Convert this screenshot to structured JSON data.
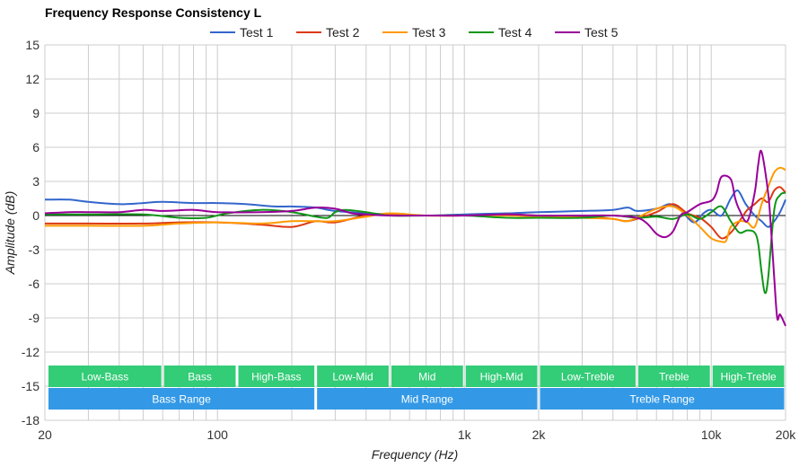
{
  "chart_data": {
    "type": "line",
    "title": "Frequency Response Consistency L",
    "xlabel": "Frequency (Hz)",
    "ylabel": "Amplitude (dB)",
    "xscale": "log",
    "xlim": [
      20,
      20000
    ],
    "ylim": [
      -18,
      15
    ],
    "grid": true,
    "legend_position": "top",
    "x_ticks": [
      {
        "value": 20,
        "label": "20"
      },
      {
        "value": 100,
        "label": "100"
      },
      {
        "value": 1000,
        "label": "1k"
      },
      {
        "value": 2000,
        "label": "2k"
      },
      {
        "value": 10000,
        "label": "10k"
      },
      {
        "value": 20000,
        "label": "20k"
      }
    ],
    "y_ticks": [
      15,
      12,
      9,
      6,
      3,
      0,
      -3,
      -6,
      -9,
      -12,
      -15,
      -18
    ],
    "series": [
      {
        "name": "Test 1",
        "color": "#3366cc",
        "x": [
          20,
          25,
          30,
          40,
          50,
          60,
          80,
          100,
          130,
          170,
          200,
          250,
          300,
          400,
          500,
          700,
          1000,
          1500,
          2000,
          3000,
          4000,
          4600,
          5000,
          6000,
          6800,
          7500,
          8500,
          9300,
          10000,
          11000,
          12000,
          12800,
          13800,
          15000,
          16000,
          17000,
          18000,
          19000,
          20000
        ],
        "y": [
          1.4,
          1.4,
          1.2,
          1.0,
          1.1,
          1.2,
          1.1,
          1.1,
          1.0,
          0.8,
          0.8,
          0.7,
          0.4,
          0.2,
          0.1,
          0.0,
          0.1,
          0.2,
          0.3,
          0.4,
          0.5,
          0.7,
          0.4,
          0.6,
          1.0,
          0.5,
          -0.6,
          0.2,
          0.5,
          0.0,
          1.5,
          2.2,
          1.0,
          0.0,
          -0.5,
          -1.0,
          -0.5,
          0.3,
          1.4
        ]
      },
      {
        "name": "Test 2",
        "color": "#dc3912",
        "x": [
          20,
          30,
          50,
          70,
          100,
          150,
          200,
          250,
          300,
          400,
          500,
          700,
          1000,
          1500,
          2000,
          3000,
          4000,
          4500,
          5000,
          6000,
          7000,
          8000,
          9000,
          10000,
          11000,
          12000,
          13000,
          14000,
          15000,
          16000,
          17000,
          18000,
          19000,
          20000
        ],
        "y": [
          -0.7,
          -0.7,
          -0.7,
          -0.6,
          -0.6,
          -0.8,
          -1.0,
          -0.5,
          -0.6,
          0.0,
          0.1,
          0.0,
          0.0,
          0.1,
          0.0,
          -0.1,
          -0.3,
          -0.5,
          -0.3,
          0.3,
          1.0,
          0.2,
          -0.2,
          -1.0,
          -2.0,
          -1.5,
          -0.5,
          0.5,
          1.0,
          1.5,
          1.2,
          2.2,
          2.5,
          2.0
        ]
      },
      {
        "name": "Test 3",
        "color": "#ff9900",
        "x": [
          20,
          30,
          50,
          70,
          100,
          150,
          200,
          250,
          300,
          400,
          500,
          700,
          1000,
          1500,
          2000,
          3000,
          4000,
          4500,
          5000,
          6000,
          7000,
          8000,
          9000,
          10000,
          11000,
          11500,
          12000,
          13000,
          14000,
          15000,
          16000,
          17000,
          18000,
          19000,
          20000
        ],
        "y": [
          -0.9,
          -0.9,
          -0.9,
          -0.7,
          -0.6,
          -0.7,
          -0.5,
          -0.5,
          -0.5,
          -0.1,
          0.2,
          0.0,
          0.0,
          0.0,
          -0.1,
          -0.2,
          -0.3,
          -0.5,
          -0.2,
          0.6,
          0.8,
          0.0,
          -1.0,
          -2.0,
          -2.3,
          -2.2,
          -1.0,
          -0.5,
          -0.6,
          -1.0,
          1.0,
          2.5,
          3.8,
          4.2,
          4.0
        ]
      },
      {
        "name": "Test 4",
        "color": "#109618",
        "x": [
          20,
          30,
          50,
          70,
          90,
          110,
          150,
          200,
          250,
          280,
          300,
          330,
          400,
          500,
          700,
          1000,
          1500,
          2000,
          3000,
          4000,
          5000,
          6000,
          7000,
          8000,
          9000,
          10000,
          11000,
          12000,
          13000,
          14000,
          15000,
          15500,
          16000,
          16500,
          17000,
          18000,
          19000,
          20000
        ],
        "y": [
          0.1,
          0.1,
          0.1,
          -0.2,
          -0.2,
          0.2,
          0.5,
          0.3,
          -0.1,
          -0.2,
          0.3,
          0.5,
          0.3,
          0.0,
          0.0,
          0.0,
          -0.2,
          -0.2,
          -0.2,
          0.0,
          -0.2,
          -0.1,
          -0.3,
          0.1,
          -0.3,
          0.3,
          0.8,
          -0.5,
          -1.5,
          -1.3,
          -1.5,
          -2.5,
          -5.0,
          -6.8,
          -5.5,
          0.5,
          1.8,
          2.0
        ]
      },
      {
        "name": "Test 5",
        "color": "#990099",
        "x": [
          20,
          25,
          30,
          40,
          50,
          60,
          80,
          100,
          150,
          200,
          250,
          300,
          350,
          400,
          500,
          700,
          1000,
          1500,
          2000,
          3000,
          4000,
          5000,
          5500,
          6000,
          6500,
          7000,
          7500,
          8000,
          9000,
          10000,
          10500,
          11000,
          12000,
          12500,
          13000,
          14000,
          15000,
          15500,
          16000,
          17000,
          17500,
          18000,
          18500,
          19000,
          20000
        ],
        "y": [
          0.2,
          0.3,
          0.3,
          0.3,
          0.5,
          0.4,
          0.5,
          0.3,
          0.3,
          0.4,
          0.7,
          0.6,
          0.2,
          0.1,
          0.0,
          0.0,
          0.0,
          0.1,
          0.0,
          0.0,
          0.0,
          -0.2,
          -0.7,
          -1.6,
          -1.9,
          -1.4,
          0.0,
          0.3,
          1.0,
          1.3,
          2.0,
          3.4,
          3.2,
          1.5,
          0.5,
          -0.5,
          2.0,
          4.5,
          5.6,
          2.0,
          -1.5,
          -5.5,
          -9.0,
          -8.7,
          -9.7
        ]
      }
    ],
    "bands_row1": [
      {
        "label": "Low-Bass",
        "from": 20,
        "to": 60
      },
      {
        "label": "Bass",
        "from": 60,
        "to": 120
      },
      {
        "label": "High-Bass",
        "from": 120,
        "to": 250
      },
      {
        "label": "Low-Mid",
        "from": 250,
        "to": 500
      },
      {
        "label": "Mid",
        "from": 500,
        "to": 1000
      },
      {
        "label": "High-Mid",
        "from": 1000,
        "to": 2000
      },
      {
        "label": "Low-Treble",
        "from": 2000,
        "to": 5000
      },
      {
        "label": "Treble",
        "from": 5000,
        "to": 10000
      },
      {
        "label": "High-Treble",
        "from": 10000,
        "to": 20000
      }
    ],
    "bands_row2": [
      {
        "label": "Bass Range",
        "from": 20,
        "to": 250
      },
      {
        "label": "Mid Range",
        "from": 250,
        "to": 2000
      },
      {
        "label": "Treble Range",
        "from": 2000,
        "to": 20000
      }
    ],
    "colors": {
      "band_row1": "#33cc77",
      "band_row2": "#3399e6",
      "grid": "#cccccc",
      "zero_line": "#000000"
    }
  }
}
